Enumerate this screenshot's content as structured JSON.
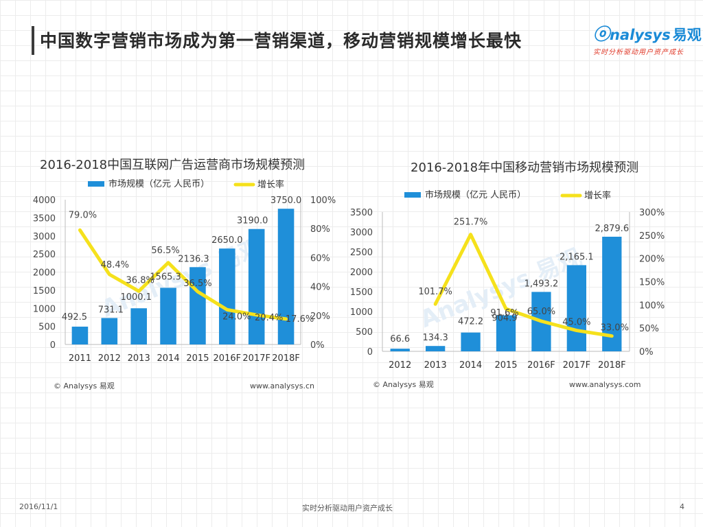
{
  "page": {
    "title": "中国数字营销市场成为第一营销渠道，移动营销规模增长最快",
    "logo": {
      "brand": "nalysys",
      "brand_cn": "易观",
      "tagline": "实时分析驱动用户资产成长"
    },
    "footer": {
      "date": "2016/11/1",
      "center": "实时分析驱动用户资产成长",
      "page_number": "4"
    }
  },
  "colors": {
    "bar": "#1f8fd9",
    "line": "#f5e11c",
    "text": "#555555",
    "axis": "#888888"
  },
  "chart_data": [
    {
      "type": "bar",
      "title": "2016-2018中国互联网广告运营商市场规模预测",
      "categories": [
        "2011",
        "2012",
        "2013",
        "2014",
        "2015",
        "2016F",
        "2017F",
        "2018F"
      ],
      "series": [
        {
          "name": "市场规模（亿元 人民币）",
          "type": "bar",
          "axis": "left",
          "values": [
            492.5,
            731.1,
            1000.1,
            1565.3,
            2136.3,
            2650.0,
            3190.0,
            3750.0
          ],
          "labels": [
            "492.5",
            "731.1",
            "1000.1",
            "1565.3",
            "2136.3",
            "2650.0",
            "3190.0",
            "3750.0"
          ]
        },
        {
          "name": "增长率",
          "type": "line",
          "axis": "right",
          "values": [
            79.0,
            48.4,
            36.8,
            56.5,
            36.5,
            24.0,
            20.4,
            17.6
          ],
          "labels": [
            "79.0%",
            "48.4%",
            "36.8%",
            "56.5%",
            "36.5%",
            "24.0%",
            "20.4%",
            "17.6%"
          ]
        }
      ],
      "y_left": {
        "min": 0,
        "max": 4000,
        "ticks": [
          "0",
          "500",
          "1000",
          "1500",
          "2000",
          "2500",
          "3000",
          "3500",
          "4000"
        ]
      },
      "y_right": {
        "min": 0,
        "max": 100,
        "ticks": [
          "0%",
          "20%",
          "40%",
          "60%",
          "80%",
          "100%"
        ]
      },
      "source": "© Analysys 易观",
      "url": "www.analysys.cn"
    },
    {
      "type": "bar",
      "title": "2016-2018年中国移动营销市场规模预测",
      "categories": [
        "2012",
        "2013",
        "2014",
        "2015",
        "2016F",
        "2017F",
        "2018F"
      ],
      "series": [
        {
          "name": "市场规模（亿元 人民币）",
          "type": "bar",
          "axis": "left",
          "values": [
            66.6,
            134.3,
            472.2,
            904.9,
            1493.2,
            2165.1,
            2879.6
          ],
          "labels": [
            "66.6",
            "134.3",
            "472.2",
            "904.9",
            "1,493.2",
            "2,165.1",
            "2,879.6"
          ]
        },
        {
          "name": "增长率",
          "type": "line",
          "axis": "right",
          "values": [
            null,
            101.7,
            251.7,
            91.6,
            65.0,
            45.0,
            33.0
          ],
          "labels": [
            "",
            "101.7%",
            "251.7%",
            "91.6%",
            "65.0%",
            "45.0%",
            "33.0%"
          ]
        }
      ],
      "y_left": {
        "min": 0,
        "max": 3500,
        "ticks": [
          "0",
          "500",
          "1000",
          "1500",
          "2000",
          "2500",
          "3000",
          "3500"
        ]
      },
      "y_right": {
        "min": 0,
        "max": 300,
        "ticks": [
          "0%",
          "50%",
          "100%",
          "150%",
          "200%",
          "250%",
          "300%"
        ]
      },
      "source": "© Analysys 易观",
      "url": "www.analysys.com"
    }
  ]
}
